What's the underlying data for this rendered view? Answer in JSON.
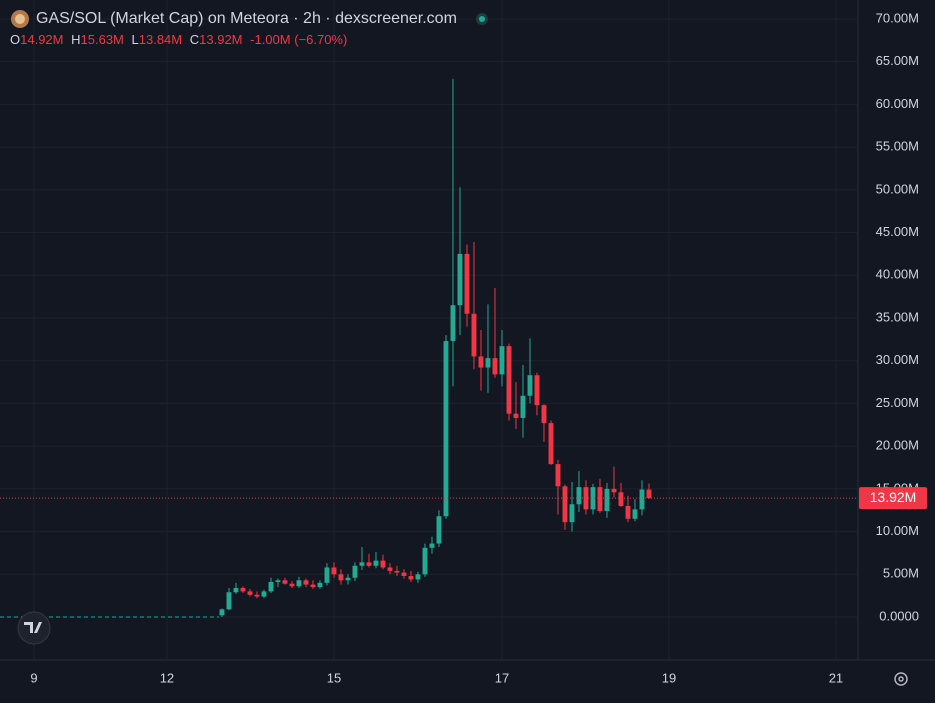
{
  "chart_data": {
    "type": "candlestick",
    "title": "GAS/SOL (Market Cap) on Meteora · 2h · dexscreener.com",
    "ohlc_header": {
      "open_label": "O",
      "open": "14.92M",
      "high_label": "H",
      "high": "15.63M",
      "low_label": "L",
      "low": "13.84M",
      "close_label": "C",
      "close": "13.92M",
      "change": "-1.00M (−6.70%)"
    },
    "up_color": "#22ab94",
    "down_color": "#f23645",
    "x": [
      0,
      1,
      2,
      3,
      4,
      5,
      6,
      7,
      8,
      9,
      10,
      11,
      12,
      13,
      14,
      15,
      16,
      17,
      18,
      19,
      20,
      21,
      22,
      23,
      24,
      25,
      26,
      27,
      28,
      29,
      30,
      31,
      32,
      33,
      34,
      35,
      36,
      37,
      38,
      39,
      40,
      41,
      42,
      43,
      44,
      45,
      46,
      47,
      48,
      49,
      50,
      51,
      52,
      53,
      54,
      55,
      56,
      57,
      58,
      59,
      60,
      61
    ],
    "open": [
      0.2,
      0.9,
      2.9,
      3.4,
      3.0,
      2.6,
      2.4,
      3.0,
      4.1,
      4.3,
      3.9,
      3.6,
      4.3,
      3.8,
      3.5,
      4.0,
      5.8,
      5.0,
      4.3,
      4.6,
      6.0,
      6.4,
      6.0,
      6.6,
      5.8,
      5.4,
      5.2,
      4.8,
      4.4,
      5.0,
      8.1,
      8.6,
      11.8,
      32.3,
      36.5,
      42.5,
      35.5,
      30.5,
      29.2,
      30.3,
      28.4,
      31.7,
      23.8,
      23.3,
      25.9,
      28.3,
      24.8,
      22.7,
      17.9,
      15.3,
      11.1,
      13.2,
      15.2,
      12.6,
      15.2,
      12.4,
      15.0,
      14.6,
      13.0,
      11.5,
      12.6,
      14.92
    ],
    "high": [
      1.0,
      3.4,
      4.0,
      3.6,
      3.3,
      3.0,
      3.2,
      4.6,
      4.5,
      4.6,
      4.2,
      4.7,
      4.5,
      4.3,
      4.3,
      6.3,
      6.4,
      5.6,
      5.0,
      6.4,
      8.2,
      7.4,
      7.6,
      7.3,
      6.3,
      6.0,
      5.6,
      5.4,
      5.3,
      8.6,
      9.4,
      12.5,
      33.0,
      63.0,
      50.3,
      43.6,
      43.9,
      33.6,
      36.6,
      38.5,
      33.6,
      32.0,
      27.5,
      29.5,
      32.6,
      28.6,
      24.9,
      23.0,
      18.4,
      15.5,
      15.8,
      17.1,
      16.0,
      15.6,
      16.2,
      15.7,
      17.6,
      15.7,
      14.2,
      13.8,
      16.0,
      15.63
    ],
    "low": [
      0.0,
      0.8,
      2.7,
      2.8,
      2.4,
      2.2,
      2.2,
      2.8,
      3.5,
      3.8,
      3.4,
      3.4,
      3.5,
      3.3,
      3.3,
      3.7,
      4.6,
      3.8,
      3.8,
      4.2,
      5.5,
      5.8,
      5.7,
      5.6,
      5.0,
      4.8,
      4.5,
      4.1,
      4.0,
      4.7,
      7.4,
      8.2,
      11.5,
      27.0,
      33.0,
      34.0,
      29.0,
      26.5,
      26.2,
      28.0,
      27.0,
      23.0,
      22.0,
      21.0,
      25.0,
      23.6,
      20.5,
      17.8,
      12.0,
      10.2,
      10.0,
      12.3,
      12.0,
      12.0,
      12.2,
      11.6,
      14.0,
      12.9,
      11.1,
      11.2,
      11.9,
      13.84
    ],
    "close": [
      0.9,
      2.9,
      3.4,
      3.0,
      2.6,
      2.4,
      3.0,
      4.1,
      4.3,
      3.9,
      3.6,
      4.3,
      3.8,
      3.5,
      4.0,
      5.8,
      5.0,
      4.3,
      4.6,
      6.0,
      6.4,
      6.0,
      6.6,
      5.8,
      5.4,
      5.2,
      4.8,
      4.4,
      5.0,
      8.1,
      8.6,
      11.8,
      32.3,
      36.5,
      42.5,
      35.5,
      30.5,
      29.2,
      30.3,
      28.4,
      31.7,
      23.8,
      23.3,
      25.9,
      28.3,
      24.8,
      22.7,
      17.9,
      15.3,
      11.1,
      13.2,
      15.2,
      12.6,
      15.2,
      12.4,
      15.0,
      14.6,
      13.0,
      11.5,
      12.6,
      14.92,
      13.92
    ],
    "xlim": [
      -31.71,
      90.86
    ],
    "xticks": [
      {
        "value": -26.86,
        "label": "9"
      },
      {
        "value": -7.86,
        "label": "12"
      },
      {
        "value": 16,
        "label": "15"
      },
      {
        "value": 40,
        "label": "17"
      },
      {
        "value": 63.86,
        "label": "19"
      },
      {
        "value": 87.71,
        "label": "21"
      }
    ],
    "ylim": [
      -5.03,
      72.22
    ],
    "yticks": [
      {
        "value": 0,
        "label": "0.0000"
      },
      {
        "value": 5,
        "label": "5.00M"
      },
      {
        "value": 10,
        "label": "10.00M"
      },
      {
        "value": 15,
        "label": "15.00M"
      },
      {
        "value": 20,
        "label": "20.00M"
      },
      {
        "value": 25,
        "label": "25.00M"
      },
      {
        "value": 30,
        "label": "30.00M"
      },
      {
        "value": 35,
        "label": "35.00M"
      },
      {
        "value": 40,
        "label": "40.00M"
      },
      {
        "value": 45,
        "label": "45.00M"
      },
      {
        "value": 50,
        "label": "50.00M"
      },
      {
        "value": 55,
        "label": "55.00M"
      },
      {
        "value": 60,
        "label": "60.00M"
      },
      {
        "value": 65,
        "label": "65.00M"
      },
      {
        "value": 70,
        "label": "70.00M"
      }
    ],
    "price_line": {
      "value": 13.92,
      "label": "13.92M"
    },
    "grid": true
  }
}
